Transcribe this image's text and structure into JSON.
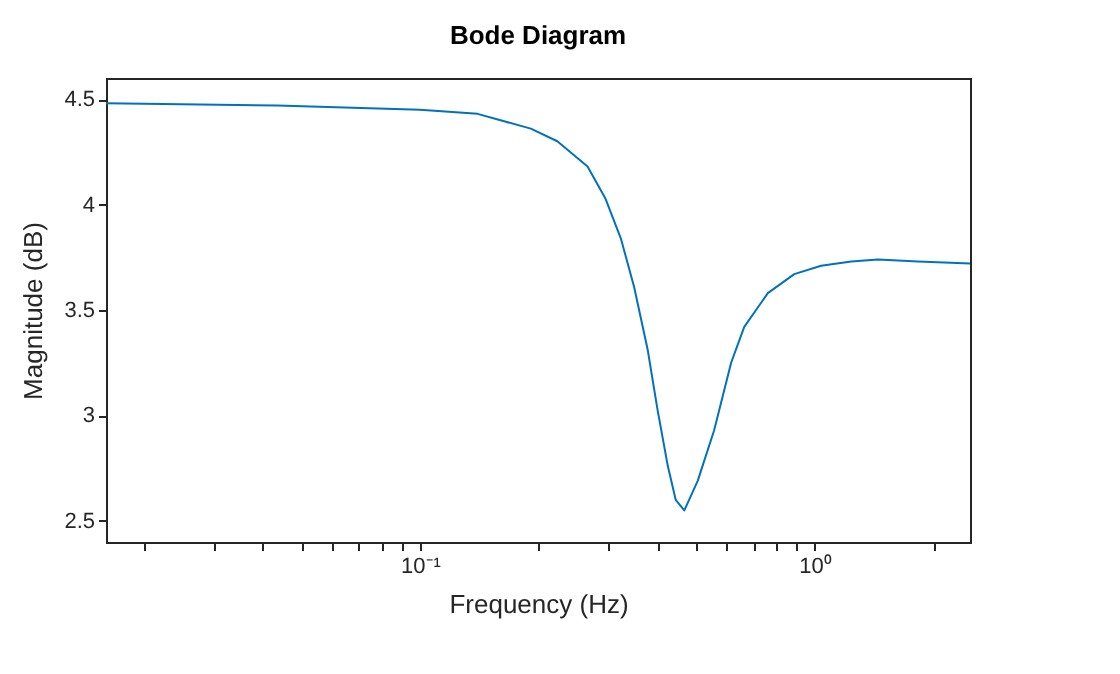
{
  "chart_data": {
    "type": "line",
    "title": "Bode Diagram",
    "xlabel": "Frequency (Hz)",
    "ylabel": "Magnitude (dB)",
    "x": [
      0.016,
      0.0435,
      0.1,
      0.14,
      0.191,
      0.223,
      0.266,
      0.295,
      0.323,
      0.349,
      0.378,
      0.4,
      0.425,
      0.445,
      0.468,
      0.506,
      0.557,
      0.615,
      0.664,
      0.762,
      0.889,
      1.04,
      1.24,
      1.45,
      1.83,
      2.48
    ],
    "series": [
      {
        "color": "#0072bd",
        "values": [
          4.48,
          4.47,
          4.45,
          4.43,
          4.36,
          4.3,
          4.18,
          4.03,
          3.84,
          3.61,
          3.31,
          3.03,
          2.76,
          2.6,
          2.55,
          2.69,
          2.93,
          3.25,
          3.42,
          3.58,
          3.67,
          3.71,
          3.73,
          3.74,
          3.73,
          3.72
        ]
      }
    ],
    "log": "x",
    "xlim": [
      0.016,
      2.48
    ],
    "ylim": [
      2.4,
      4.6
    ],
    "xticks": [
      {
        "value": 0.02,
        "label": null
      },
      {
        "value": 0.03,
        "label": null
      },
      {
        "value": 0.04,
        "label": null
      },
      {
        "value": 0.05,
        "label": null
      },
      {
        "value": 0.06,
        "label": null
      },
      {
        "value": 0.07,
        "label": null
      },
      {
        "value": 0.08,
        "label": null
      },
      {
        "value": 0.09,
        "label": null
      },
      {
        "value": 0.1,
        "label": "10⁻¹"
      },
      {
        "value": 0.2,
        "label": null
      },
      {
        "value": 0.3,
        "label": null
      },
      {
        "value": 0.4,
        "label": null
      },
      {
        "value": 0.5,
        "label": null
      },
      {
        "value": 0.6,
        "label": null
      },
      {
        "value": 0.7,
        "label": null
      },
      {
        "value": 0.8,
        "label": null
      },
      {
        "value": 0.9,
        "label": null
      },
      {
        "value": 1,
        "label": "10⁰"
      },
      {
        "value": 2,
        "label": null
      }
    ],
    "yticks": [
      2.5,
      3,
      3.5,
      4,
      4.5
    ],
    "grid": false,
    "line_style": "solid",
    "marker": "none"
  }
}
